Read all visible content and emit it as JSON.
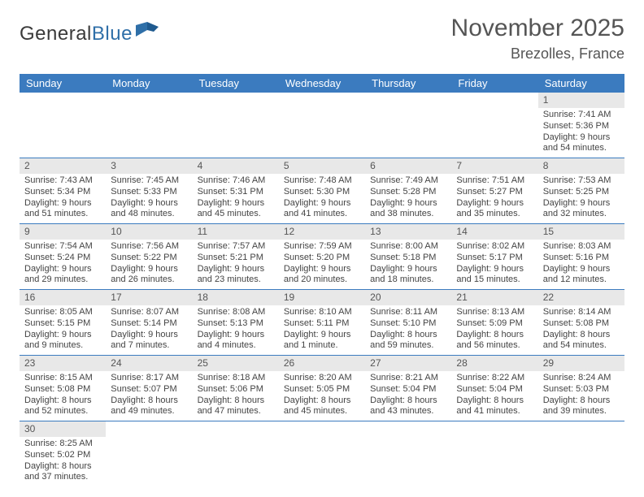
{
  "logo": {
    "part1": "General",
    "part2": "Blue"
  },
  "title": "November 2025",
  "location": "Brezolles, France",
  "daynames": [
    "Sunday",
    "Monday",
    "Tuesday",
    "Wednesday",
    "Thursday",
    "Friday",
    "Saturday"
  ],
  "colors": {
    "header_bg": "#3b7bbf",
    "header_text": "#ffffff",
    "daynum_bg": "#e8e8e8",
    "border": "#3b7bbf",
    "text": "#444444"
  },
  "weeks": [
    [
      {
        "empty": true
      },
      {
        "empty": true
      },
      {
        "empty": true
      },
      {
        "empty": true
      },
      {
        "empty": true
      },
      {
        "empty": true
      },
      {
        "day": "1",
        "sunrise": "Sunrise: 7:41 AM",
        "sunset": "Sunset: 5:36 PM",
        "daylight": "Daylight: 9 hours and 54 minutes."
      }
    ],
    [
      {
        "day": "2",
        "sunrise": "Sunrise: 7:43 AM",
        "sunset": "Sunset: 5:34 PM",
        "daylight": "Daylight: 9 hours and 51 minutes."
      },
      {
        "day": "3",
        "sunrise": "Sunrise: 7:45 AM",
        "sunset": "Sunset: 5:33 PM",
        "daylight": "Daylight: 9 hours and 48 minutes."
      },
      {
        "day": "4",
        "sunrise": "Sunrise: 7:46 AM",
        "sunset": "Sunset: 5:31 PM",
        "daylight": "Daylight: 9 hours and 45 minutes."
      },
      {
        "day": "5",
        "sunrise": "Sunrise: 7:48 AM",
        "sunset": "Sunset: 5:30 PM",
        "daylight": "Daylight: 9 hours and 41 minutes."
      },
      {
        "day": "6",
        "sunrise": "Sunrise: 7:49 AM",
        "sunset": "Sunset: 5:28 PM",
        "daylight": "Daylight: 9 hours and 38 minutes."
      },
      {
        "day": "7",
        "sunrise": "Sunrise: 7:51 AM",
        "sunset": "Sunset: 5:27 PM",
        "daylight": "Daylight: 9 hours and 35 minutes."
      },
      {
        "day": "8",
        "sunrise": "Sunrise: 7:53 AM",
        "sunset": "Sunset: 5:25 PM",
        "daylight": "Daylight: 9 hours and 32 minutes."
      }
    ],
    [
      {
        "day": "9",
        "sunrise": "Sunrise: 7:54 AM",
        "sunset": "Sunset: 5:24 PM",
        "daylight": "Daylight: 9 hours and 29 minutes."
      },
      {
        "day": "10",
        "sunrise": "Sunrise: 7:56 AM",
        "sunset": "Sunset: 5:22 PM",
        "daylight": "Daylight: 9 hours and 26 minutes."
      },
      {
        "day": "11",
        "sunrise": "Sunrise: 7:57 AM",
        "sunset": "Sunset: 5:21 PM",
        "daylight": "Daylight: 9 hours and 23 minutes."
      },
      {
        "day": "12",
        "sunrise": "Sunrise: 7:59 AM",
        "sunset": "Sunset: 5:20 PM",
        "daylight": "Daylight: 9 hours and 20 minutes."
      },
      {
        "day": "13",
        "sunrise": "Sunrise: 8:00 AM",
        "sunset": "Sunset: 5:18 PM",
        "daylight": "Daylight: 9 hours and 18 minutes."
      },
      {
        "day": "14",
        "sunrise": "Sunrise: 8:02 AM",
        "sunset": "Sunset: 5:17 PM",
        "daylight": "Daylight: 9 hours and 15 minutes."
      },
      {
        "day": "15",
        "sunrise": "Sunrise: 8:03 AM",
        "sunset": "Sunset: 5:16 PM",
        "daylight": "Daylight: 9 hours and 12 minutes."
      }
    ],
    [
      {
        "day": "16",
        "sunrise": "Sunrise: 8:05 AM",
        "sunset": "Sunset: 5:15 PM",
        "daylight": "Daylight: 9 hours and 9 minutes."
      },
      {
        "day": "17",
        "sunrise": "Sunrise: 8:07 AM",
        "sunset": "Sunset: 5:14 PM",
        "daylight": "Daylight: 9 hours and 7 minutes."
      },
      {
        "day": "18",
        "sunrise": "Sunrise: 8:08 AM",
        "sunset": "Sunset: 5:13 PM",
        "daylight": "Daylight: 9 hours and 4 minutes."
      },
      {
        "day": "19",
        "sunrise": "Sunrise: 8:10 AM",
        "sunset": "Sunset: 5:11 PM",
        "daylight": "Daylight: 9 hours and 1 minute."
      },
      {
        "day": "20",
        "sunrise": "Sunrise: 8:11 AM",
        "sunset": "Sunset: 5:10 PM",
        "daylight": "Daylight: 8 hours and 59 minutes."
      },
      {
        "day": "21",
        "sunrise": "Sunrise: 8:13 AM",
        "sunset": "Sunset: 5:09 PM",
        "daylight": "Daylight: 8 hours and 56 minutes."
      },
      {
        "day": "22",
        "sunrise": "Sunrise: 8:14 AM",
        "sunset": "Sunset: 5:08 PM",
        "daylight": "Daylight: 8 hours and 54 minutes."
      }
    ],
    [
      {
        "day": "23",
        "sunrise": "Sunrise: 8:15 AM",
        "sunset": "Sunset: 5:08 PM",
        "daylight": "Daylight: 8 hours and 52 minutes."
      },
      {
        "day": "24",
        "sunrise": "Sunrise: 8:17 AM",
        "sunset": "Sunset: 5:07 PM",
        "daylight": "Daylight: 8 hours and 49 minutes."
      },
      {
        "day": "25",
        "sunrise": "Sunrise: 8:18 AM",
        "sunset": "Sunset: 5:06 PM",
        "daylight": "Daylight: 8 hours and 47 minutes."
      },
      {
        "day": "26",
        "sunrise": "Sunrise: 8:20 AM",
        "sunset": "Sunset: 5:05 PM",
        "daylight": "Daylight: 8 hours and 45 minutes."
      },
      {
        "day": "27",
        "sunrise": "Sunrise: 8:21 AM",
        "sunset": "Sunset: 5:04 PM",
        "daylight": "Daylight: 8 hours and 43 minutes."
      },
      {
        "day": "28",
        "sunrise": "Sunrise: 8:22 AM",
        "sunset": "Sunset: 5:04 PM",
        "daylight": "Daylight: 8 hours and 41 minutes."
      },
      {
        "day": "29",
        "sunrise": "Sunrise: 8:24 AM",
        "sunset": "Sunset: 5:03 PM",
        "daylight": "Daylight: 8 hours and 39 minutes."
      }
    ],
    [
      {
        "day": "30",
        "sunrise": "Sunrise: 8:25 AM",
        "sunset": "Sunset: 5:02 PM",
        "daylight": "Daylight: 8 hours and 37 minutes."
      },
      {
        "empty": true
      },
      {
        "empty": true
      },
      {
        "empty": true
      },
      {
        "empty": true
      },
      {
        "empty": true
      },
      {
        "empty": true
      }
    ]
  ]
}
